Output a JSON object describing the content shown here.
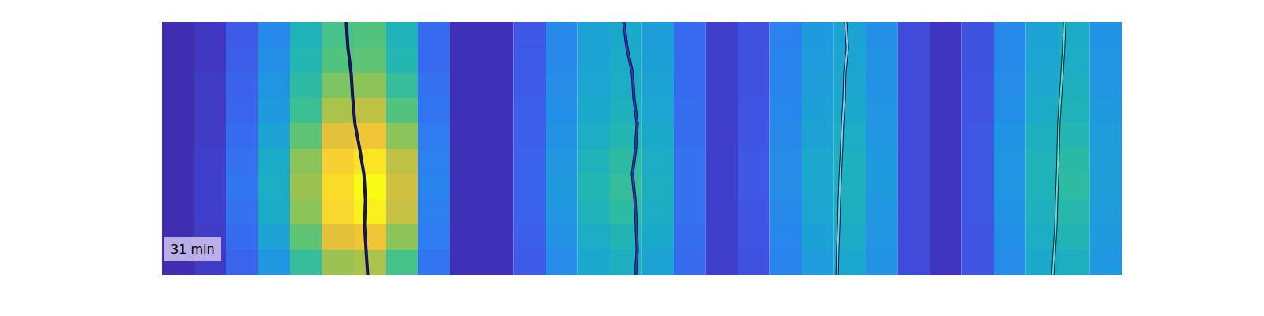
{
  "chart_data": {
    "type": "heatmap",
    "annotation": "31 min",
    "xlim": [
      0,
      30
    ],
    "ylim": [
      0,
      10
    ],
    "clim": [
      0,
      1
    ],
    "tick_labels": false,
    "grid": false,
    "cells": [
      [
        0.02,
        0.05,
        0.15,
        0.3,
        0.48,
        0.58,
        0.6,
        0.48,
        0.2,
        0.03,
        0.03,
        0.14,
        0.3,
        0.4,
        0.43,
        0.38,
        0.2,
        0.07,
        0.12,
        0.27,
        0.36,
        0.4,
        0.32,
        0.1,
        0.04,
        0.12,
        0.3,
        0.4,
        0.44,
        0.33
      ],
      [
        0.02,
        0.05,
        0.16,
        0.32,
        0.5,
        0.6,
        0.62,
        0.5,
        0.2,
        0.03,
        0.03,
        0.15,
        0.3,
        0.4,
        0.44,
        0.39,
        0.2,
        0.07,
        0.12,
        0.28,
        0.37,
        0.41,
        0.33,
        0.1,
        0.04,
        0.12,
        0.3,
        0.41,
        0.45,
        0.34
      ],
      [
        0.02,
        0.06,
        0.17,
        0.34,
        0.53,
        0.66,
        0.68,
        0.55,
        0.22,
        0.03,
        0.03,
        0.15,
        0.31,
        0.41,
        0.45,
        0.4,
        0.2,
        0.07,
        0.12,
        0.28,
        0.38,
        0.42,
        0.33,
        0.1,
        0.04,
        0.13,
        0.31,
        0.42,
        0.46,
        0.35
      ],
      [
        0.02,
        0.06,
        0.18,
        0.36,
        0.56,
        0.72,
        0.75,
        0.6,
        0.23,
        0.03,
        0.03,
        0.16,
        0.32,
        0.43,
        0.47,
        0.41,
        0.21,
        0.07,
        0.13,
        0.29,
        0.39,
        0.43,
        0.34,
        0.1,
        0.04,
        0.13,
        0.32,
        0.44,
        0.48,
        0.36
      ],
      [
        0.02,
        0.06,
        0.2,
        0.4,
        0.62,
        0.82,
        0.86,
        0.68,
        0.25,
        0.03,
        0.03,
        0.16,
        0.33,
        0.45,
        0.5,
        0.43,
        0.21,
        0.07,
        0.13,
        0.3,
        0.4,
        0.45,
        0.35,
        0.1,
        0.04,
        0.14,
        0.33,
        0.46,
        0.5,
        0.37
      ],
      [
        0.02,
        0.07,
        0.22,
        0.44,
        0.68,
        0.9,
        0.95,
        0.75,
        0.27,
        0.03,
        0.03,
        0.17,
        0.35,
        0.48,
        0.53,
        0.45,
        0.22,
        0.07,
        0.14,
        0.31,
        0.42,
        0.47,
        0.36,
        0.1,
        0.04,
        0.14,
        0.34,
        0.48,
        0.52,
        0.38
      ],
      [
        0.02,
        0.07,
        0.23,
        0.45,
        0.7,
        0.93,
        1.0,
        0.78,
        0.28,
        0.03,
        0.03,
        0.17,
        0.36,
        0.5,
        0.55,
        0.46,
        0.22,
        0.07,
        0.14,
        0.31,
        0.42,
        0.47,
        0.36,
        0.1,
        0.04,
        0.14,
        0.34,
        0.48,
        0.53,
        0.38
      ],
      [
        0.02,
        0.07,
        0.22,
        0.44,
        0.68,
        0.92,
        0.98,
        0.76,
        0.27,
        0.03,
        0.03,
        0.17,
        0.35,
        0.48,
        0.53,
        0.45,
        0.22,
        0.07,
        0.13,
        0.3,
        0.41,
        0.46,
        0.35,
        0.1,
        0.04,
        0.14,
        0.33,
        0.47,
        0.51,
        0.37
      ],
      [
        0.02,
        0.06,
        0.2,
        0.4,
        0.62,
        0.82,
        0.86,
        0.68,
        0.25,
        0.03,
        0.03,
        0.16,
        0.33,
        0.45,
        0.49,
        0.43,
        0.21,
        0.07,
        0.13,
        0.29,
        0.39,
        0.44,
        0.34,
        0.1,
        0.04,
        0.13,
        0.32,
        0.45,
        0.49,
        0.36
      ],
      [
        0.02,
        0.06,
        0.18,
        0.35,
        0.55,
        0.7,
        0.72,
        0.58,
        0.23,
        0.03,
        0.03,
        0.15,
        0.31,
        0.42,
        0.46,
        0.4,
        0.2,
        0.07,
        0.12,
        0.28,
        0.37,
        0.42,
        0.33,
        0.1,
        0.04,
        0.13,
        0.31,
        0.43,
        0.46,
        0.35
      ]
    ],
    "lines": [
      {
        "color": "#17176e",
        "x": [
          5.75,
          5.8,
          5.9,
          5.95,
          6.02,
          6.17,
          6.3,
          6.35,
          6.32,
          6.37,
          6.42
        ],
        "y": [
          0,
          1,
          2,
          3,
          4,
          5,
          6,
          7,
          8,
          9,
          10
        ]
      },
      {
        "color": "#1f3fc0",
        "x": [
          14.42,
          14.52,
          14.69,
          14.74,
          14.84,
          14.79,
          14.69,
          14.77,
          14.81,
          14.84,
          14.79
        ],
        "y": [
          0,
          1,
          2,
          3,
          4,
          5,
          6,
          7,
          8,
          9,
          10
        ]
      },
      {
        "color": "#6fd6e8",
        "x": [
          21.36,
          21.41,
          21.33,
          21.31,
          21.26,
          21.23,
          21.19,
          21.16,
          21.14,
          21.11,
          21.09
        ],
        "y": [
          0,
          1,
          2,
          3,
          4,
          5,
          6,
          7,
          8,
          9,
          10
        ]
      },
      {
        "color": "#44ecc8",
        "x": [
          28.2,
          28.17,
          28.12,
          28.07,
          28.02,
          28.0,
          27.98,
          27.95,
          27.93,
          27.88,
          27.83
        ],
        "y": [
          0,
          1,
          2,
          3,
          4,
          5,
          6,
          7,
          8,
          9,
          10
        ]
      }
    ]
  }
}
